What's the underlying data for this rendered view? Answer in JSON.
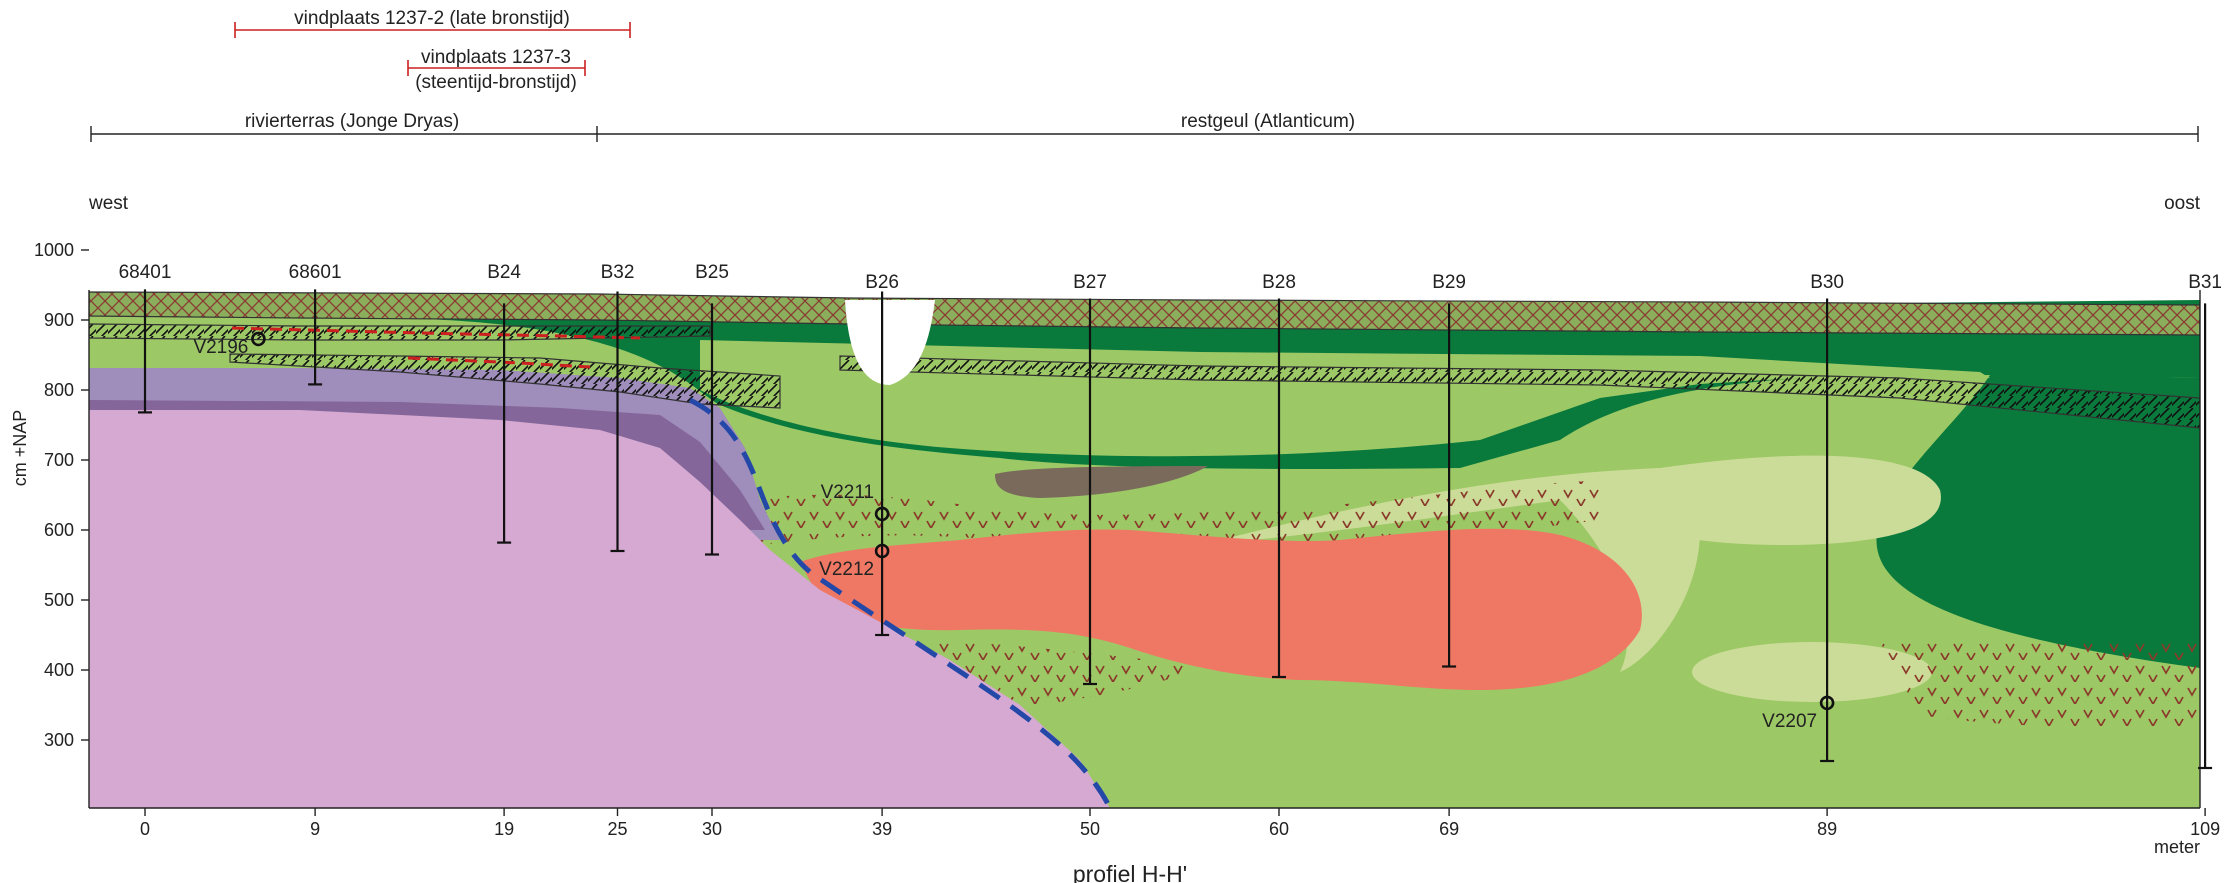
{
  "finds": [
    {
      "label": "vindplaats 1237-2 (late bronstijd)"
    },
    {
      "label": "vindplaats 1237-3",
      "sublabel": "(steentijd-bronstijd)"
    }
  ],
  "zones": [
    {
      "label": "rivierterras (Jonge Dryas)"
    },
    {
      "label": "restgeul (Atlanticum)"
    }
  ],
  "orientation": {
    "west": "west",
    "east": "oost"
  },
  "y_axis": {
    "label": "cm +NAP",
    "ticks": [
      "1000",
      "900",
      "800",
      "700",
      "600",
      "500",
      "400",
      "300"
    ]
  },
  "x_axis": {
    "ticks": [
      "0",
      "9",
      "19",
      "25",
      "30",
      "39",
      "50",
      "60",
      "69",
      "89",
      "109"
    ],
    "unit": "meter"
  },
  "boreholes": [
    {
      "name": "68401"
    },
    {
      "name": "68601"
    },
    {
      "name": "B24"
    },
    {
      "name": "B32"
    },
    {
      "name": "B25"
    },
    {
      "name": "B26"
    },
    {
      "name": "B27"
    },
    {
      "name": "B28"
    },
    {
      "name": "B29"
    },
    {
      "name": "B30"
    },
    {
      "name": "B31"
    }
  ],
  "samples": [
    "V2196",
    "V2211",
    "V2212",
    "V2207"
  ],
  "title": "profiel H-H'",
  "colors": {
    "terrace_pink": "#d5a9d2",
    "terrace_purple_light": "#9f8dbb",
    "terrace_purple_dark": "#84669a",
    "sediment_light_green": "#9dc866",
    "sediment_pale_green": "#cbdc98",
    "sediment_dark_green": "#0a7a3c",
    "topsoil_green": "#8aae5c",
    "peat_brown": "#7a6a5c",
    "find_layer_red": "#ef7864",
    "terrace_edge_blue": "#2448a8",
    "find_marker_red": "#cc2020"
  }
}
